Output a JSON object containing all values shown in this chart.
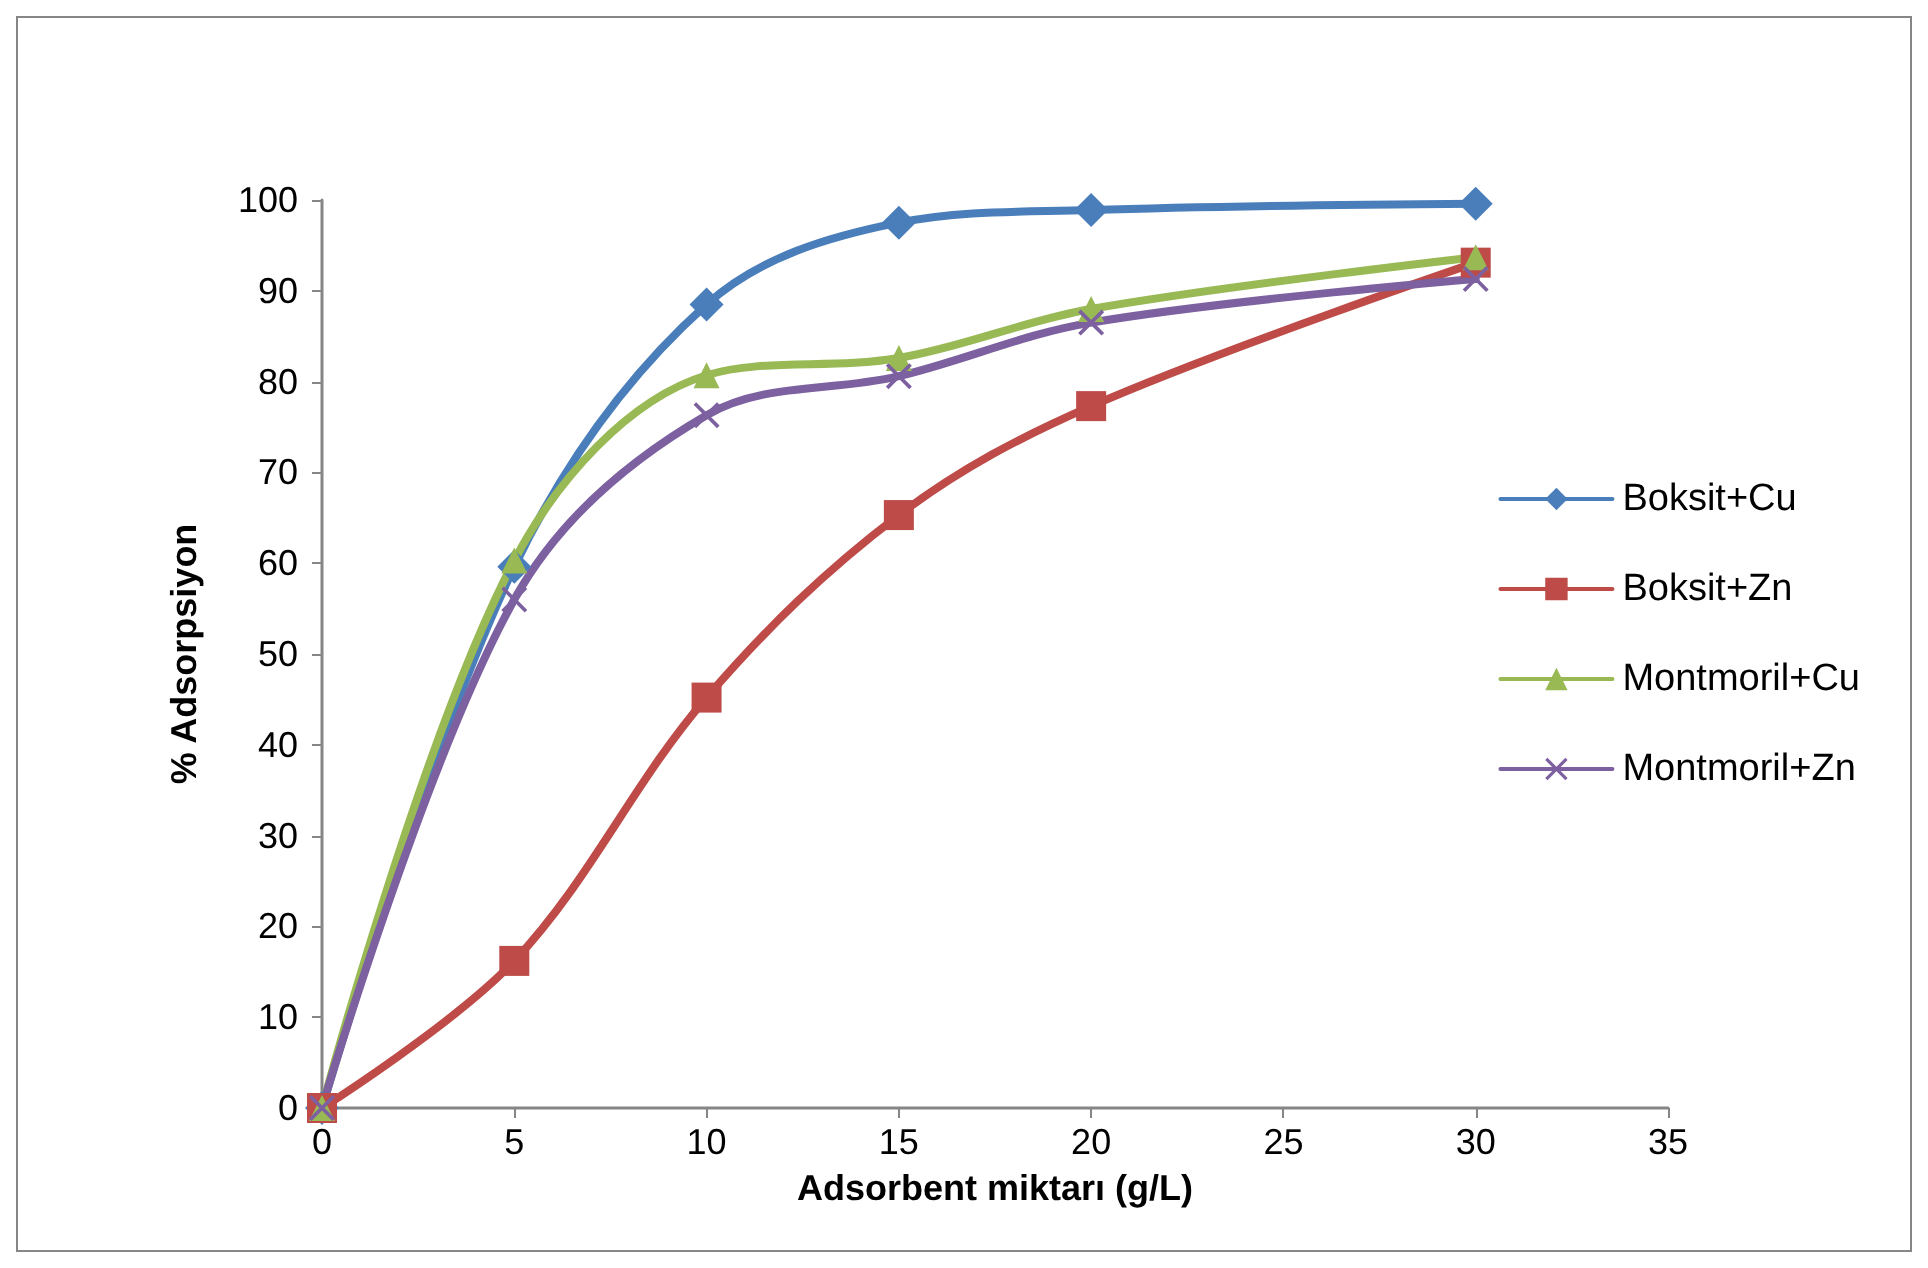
{
  "chart_data": {
    "type": "line",
    "xlabel": "Adsorbent miktarı (g/L)",
    "ylabel": "% Adsorpsiyon",
    "x": [
      0,
      5,
      10,
      15,
      20,
      30
    ],
    "xlim": [
      0,
      35
    ],
    "xticks": [
      0,
      5,
      10,
      15,
      20,
      25,
      30,
      35
    ],
    "ylim": [
      0,
      100
    ],
    "yticks": [
      0,
      10,
      20,
      30,
      40,
      50,
      60,
      70,
      80,
      90,
      100
    ],
    "grid": false,
    "legend": "right",
    "line_style": "solid",
    "series": [
      {
        "name": "Boksit+Cu",
        "color": "#4a7ebb",
        "marker": "diamond",
        "values": [
          0,
          59.6,
          88.5,
          97.5,
          98.9,
          99.6
        ]
      },
      {
        "name": "Boksit+Zn",
        "color": "#be4b48",
        "marker": "square",
        "values": [
          0,
          16.2,
          45.2,
          65.3,
          77.3,
          93.1
        ]
      },
      {
        "name": "Montmoril+Cu",
        "color": "#98b954",
        "marker": "triangle",
        "values": [
          0,
          60.3,
          80.7,
          82.6,
          88,
          93.7
        ]
      },
      {
        "name": "Montmoril+Zn",
        "color": "#7d60a0",
        "marker": "cross",
        "values": [
          0,
          56,
          76.3,
          80.6,
          86.5,
          91.3
        ]
      }
    ]
  }
}
